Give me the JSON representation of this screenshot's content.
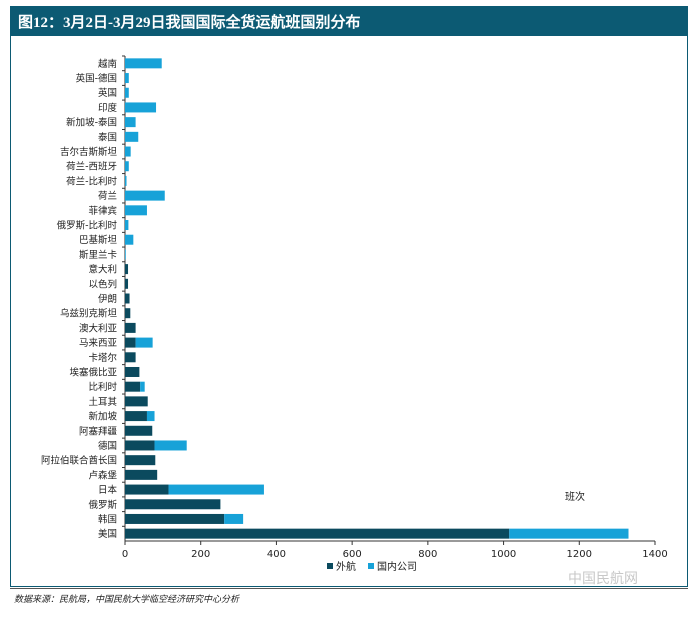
{
  "header": {
    "title": "图12：3月2日-3月29日我国国际全货运航班国别分布"
  },
  "source": "数据来源：民航局，中国民航大学临空经济研究中心分析",
  "watermark": "中国民航网",
  "colors": {
    "title_bg": "#0c5a73",
    "series_foreign": "#0b4a5e",
    "series_domestic": "#17a2d8",
    "axis": "#333333"
  },
  "chart_data": {
    "type": "bar",
    "orientation": "horizontal",
    "stacked": true,
    "categories": [
      "越南",
      "英国-德国",
      "英国",
      "印度",
      "新加坡-泰国",
      "泰国",
      "吉尔吉斯斯坦",
      "荷兰-西班牙",
      "荷兰-比利时",
      "荷兰",
      "菲律宾",
      "俄罗斯-比利时",
      "巴基斯坦",
      "斯里兰卡",
      "意大利",
      "以色列",
      "伊朗",
      "乌兹别克斯坦",
      "澳大利亚",
      "马来西亚",
      "卡塔尔",
      "埃塞俄比亚",
      "比利时",
      "土耳其",
      "新加坡",
      "阿塞拜疆",
      "德国",
      "阿拉伯联合酋长国",
      "卢森堡",
      "日本",
      "俄罗斯",
      "韩国",
      "美国"
    ],
    "series": [
      {
        "name": "外航",
        "values": [
          0,
          0,
          0,
          0,
          0,
          0,
          0,
          0,
          0,
          0,
          0,
          0,
          0,
          0,
          8,
          8,
          12,
          14,
          28,
          28,
          28,
          38,
          40,
          60,
          58,
          72,
          78,
          80,
          85,
          115,
          252,
          262,
          1015
        ]
      },
      {
        "name": "国内公司",
        "values": [
          97,
          10,
          10,
          82,
          28,
          35,
          15,
          10,
          4,
          105,
          58,
          9,
          22,
          2,
          0,
          0,
          0,
          0,
          0,
          45,
          0,
          0,
          12,
          0,
          20,
          0,
          85,
          0,
          0,
          252,
          0,
          50,
          315
        ]
      }
    ],
    "x_ticks": [
      "0",
      "200",
      "400",
      "600",
      "800",
      "1000",
      "1200",
      "1400"
    ],
    "xlim": [
      0,
      1400
    ],
    "unit_label": "班次",
    "legend_position": "bottom"
  }
}
